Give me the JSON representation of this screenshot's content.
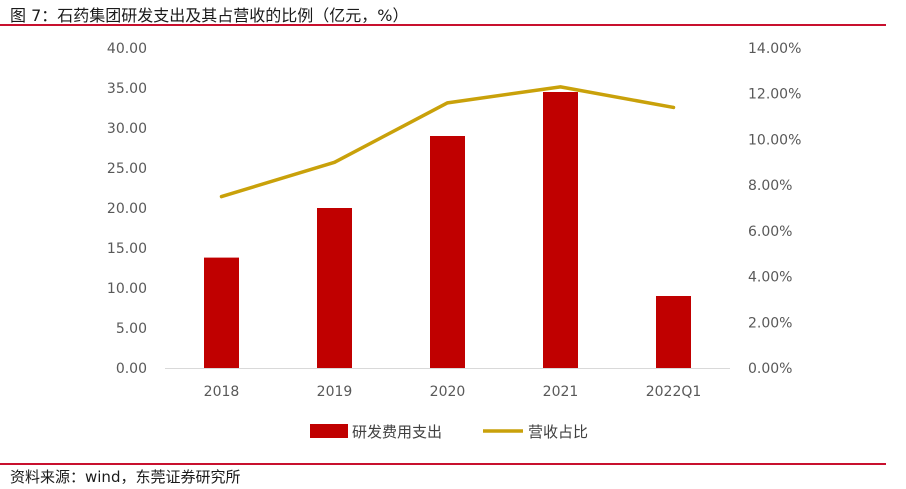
{
  "figure": {
    "title": "图 7：石药集团研发支出及其占营收的比例（亿元，%）",
    "source": "资料来源：wind，东莞证券研究所"
  },
  "chart_data": {
    "type": "bar",
    "categories": [
      "2018",
      "2019",
      "2020",
      "2021",
      "2022Q1"
    ],
    "series": [
      {
        "name": "研发费用支出",
        "type": "bar",
        "axis": "left",
        "color": "#c00000",
        "values": [
          13.8,
          20.0,
          29.0,
          34.5,
          9.0
        ]
      },
      {
        "name": "营收占比",
        "type": "line",
        "axis": "right",
        "color": "#c9a10a",
        "values": [
          7.5,
          9.0,
          11.6,
          12.3,
          11.4
        ]
      }
    ],
    "y_left": {
      "ylim": [
        0,
        40
      ],
      "ticks": [
        "0.00",
        "5.00",
        "10.00",
        "15.00",
        "20.00",
        "25.00",
        "30.00",
        "35.00",
        "40.00"
      ]
    },
    "y_right": {
      "ylim": [
        0,
        14
      ],
      "ticks": [
        "0.00%",
        "2.00%",
        "4.00%",
        "6.00%",
        "8.00%",
        "10.00%",
        "12.00%",
        "14.00%"
      ]
    },
    "grid": false,
    "legend_position": "bottom"
  }
}
